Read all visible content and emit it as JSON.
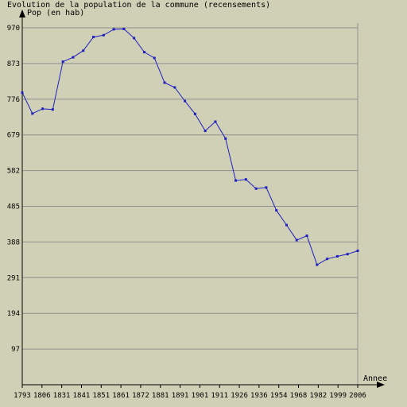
{
  "chart_data": {
    "type": "line",
    "title": "Evolution de la population de la commune (recensements)",
    "ylabel": "Pop (en hab)",
    "xlabel": "Annee",
    "ylim": [
      0,
      970
    ],
    "yticks": [
      97,
      194,
      291,
      388,
      485,
      582,
      679,
      776,
      873,
      970
    ],
    "xtick_labels": [
      "1793",
      "1806",
      "1831",
      "1841",
      "1851",
      "1861",
      "1872",
      "1881",
      "1891",
      "1901",
      "1911",
      "1926",
      "1936",
      "1954",
      "1968",
      "1982",
      "1999",
      "2006"
    ],
    "grid": true,
    "colors": {
      "line": "#2020c0",
      "grid": "#909090",
      "background": "#cfd0b6"
    },
    "values": [
      794,
      737,
      750,
      748,
      878,
      890,
      908,
      945,
      950,
      966,
      967,
      942,
      904,
      888,
      821,
      808,
      771,
      736,
      690,
      715,
      669,
      555,
      558,
      533,
      536,
      474,
      434,
      393,
      405,
      326,
      342,
      349,
      355,
      364
    ]
  }
}
